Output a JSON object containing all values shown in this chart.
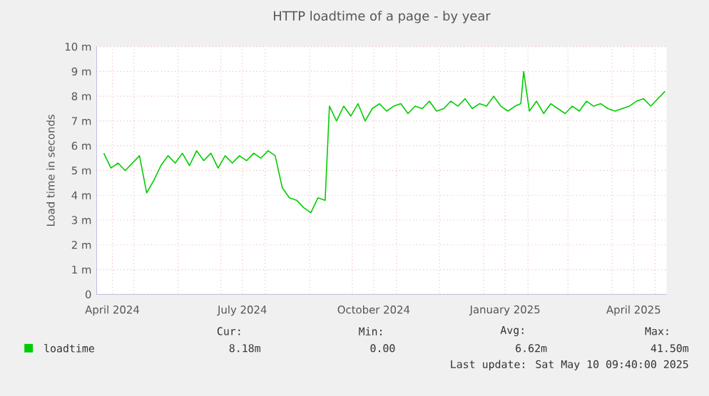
{
  "chart_data": {
    "type": "line",
    "title": "HTTP loadtime of a page - by year",
    "ylabel": "Load time in seconds",
    "xlim": [
      "2024-04-05",
      "2025-05-09"
    ],
    "xticks": [
      {
        "value": "2024-04-16",
        "label": "April 2024"
      },
      {
        "value": "2024-07-16",
        "label": "July 2024"
      },
      {
        "value": "2024-10-16",
        "label": "October 2024"
      },
      {
        "value": "2025-01-16",
        "label": "January 2025"
      },
      {
        "value": "2025-04-16",
        "label": "April 2025"
      },
      {
        "value": "2024-05-01",
        "label": null
      },
      {
        "value": "2024-06-01",
        "label": null
      },
      {
        "value": "2024-07-01",
        "label": null
      },
      {
        "value": "2024-08-01",
        "label": null
      },
      {
        "value": "2024-09-01",
        "label": null
      },
      {
        "value": "2024-10-01",
        "label": null
      },
      {
        "value": "2024-11-01",
        "label": null
      },
      {
        "value": "2024-12-01",
        "label": null
      },
      {
        "value": "2025-01-01",
        "label": null
      },
      {
        "value": "2025-02-01",
        "label": null
      },
      {
        "value": "2025-03-01",
        "label": null
      },
      {
        "value": "2025-04-01",
        "label": null
      },
      {
        "value": "2025-05-01",
        "label": null
      }
    ],
    "ylim": [
      0,
      10
    ],
    "yticks": [
      0,
      {
        "value": 1,
        "label": "1 m"
      },
      {
        "value": 2,
        "label": "2 m"
      },
      {
        "value": 3,
        "label": "3 m"
      },
      {
        "value": 4,
        "label": "4 m"
      },
      {
        "value": 5,
        "label": "5 m"
      },
      {
        "value": 6,
        "label": "6 m"
      },
      {
        "value": 7,
        "label": "7 m"
      },
      {
        "value": 8,
        "label": "8 m"
      },
      {
        "value": 9,
        "label": "9 m"
      },
      {
        "value": 10,
        "label": "10 m"
      }
    ],
    "grid": true,
    "legend": "bottom",
    "marker": "none",
    "x": [
      "2024-04-10",
      "2024-04-15",
      "2024-04-20",
      "2024-04-25",
      "2024-04-30",
      "2024-05-05",
      "2024-05-10",
      "2024-05-15",
      "2024-05-20",
      "2024-05-25",
      "2024-05-30",
      "2024-06-04",
      "2024-06-09",
      "2024-06-14",
      "2024-06-19",
      "2024-06-24",
      "2024-06-29",
      "2024-07-04",
      "2024-07-09",
      "2024-07-14",
      "2024-07-19",
      "2024-07-24",
      "2024-07-29",
      "2024-08-03",
      "2024-08-08",
      "2024-08-13",
      "2024-08-18",
      "2024-08-23",
      "2024-08-28",
      "2024-09-02",
      "2024-09-07",
      "2024-09-12",
      "2024-09-15",
      "2024-09-20",
      "2024-09-25",
      "2024-09-30",
      "2024-10-05",
      "2024-10-10",
      "2024-10-15",
      "2024-10-20",
      "2024-10-25",
      "2024-10-30",
      "2024-11-04",
      "2024-11-09",
      "2024-11-14",
      "2024-11-19",
      "2024-11-24",
      "2024-11-29",
      "2024-12-04",
      "2024-12-09",
      "2024-12-14",
      "2024-12-19",
      "2024-12-24",
      "2024-12-29",
      "2025-01-03",
      "2025-01-08",
      "2025-01-13",
      "2025-01-18",
      "2025-01-23",
      "2025-01-27",
      "2025-01-29",
      "2025-02-02",
      "2025-02-07",
      "2025-02-12",
      "2025-02-17",
      "2025-02-22",
      "2025-02-27",
      "2025-03-04",
      "2025-03-09",
      "2025-03-14",
      "2025-03-19",
      "2025-03-24",
      "2025-03-29",
      "2025-04-03",
      "2025-04-08",
      "2025-04-13",
      "2025-04-18",
      "2025-04-23",
      "2025-04-28",
      "2025-05-03",
      "2025-05-08"
    ],
    "series": [
      {
        "name": "loadtime",
        "color": "#00cc00",
        "values": [
          5.7,
          5.1,
          5.3,
          5.0,
          5.3,
          5.6,
          4.1,
          4.6,
          5.2,
          5.6,
          5.3,
          5.7,
          5.2,
          5.8,
          5.4,
          5.7,
          5.1,
          5.6,
          5.3,
          5.6,
          5.4,
          5.7,
          5.5,
          5.8,
          5.6,
          4.3,
          3.9,
          3.8,
          3.5,
          3.3,
          3.9,
          3.8,
          7.6,
          7.0,
          7.6,
          7.2,
          7.7,
          7.0,
          7.5,
          7.7,
          7.4,
          7.6,
          7.7,
          7.3,
          7.6,
          7.5,
          7.8,
          7.4,
          7.5,
          7.8,
          7.6,
          7.9,
          7.5,
          7.7,
          7.6,
          8.0,
          7.6,
          7.4,
          7.6,
          7.7,
          9.0,
          7.4,
          7.8,
          7.3,
          7.7,
          7.5,
          7.3,
          7.6,
          7.4,
          7.8,
          7.6,
          7.7,
          7.5,
          7.4,
          7.5,
          7.6,
          7.8,
          7.9,
          7.6,
          7.9,
          8.2
        ]
      }
    ],
    "annotations": [
      "Cur:",
      "Min:",
      "Avg:",
      "Max:",
      "8.18m",
      "0.00",
      "6.62m",
      "41.50m",
      "Last update: Sat May 10 09:40:00 2025"
    ]
  }
}
